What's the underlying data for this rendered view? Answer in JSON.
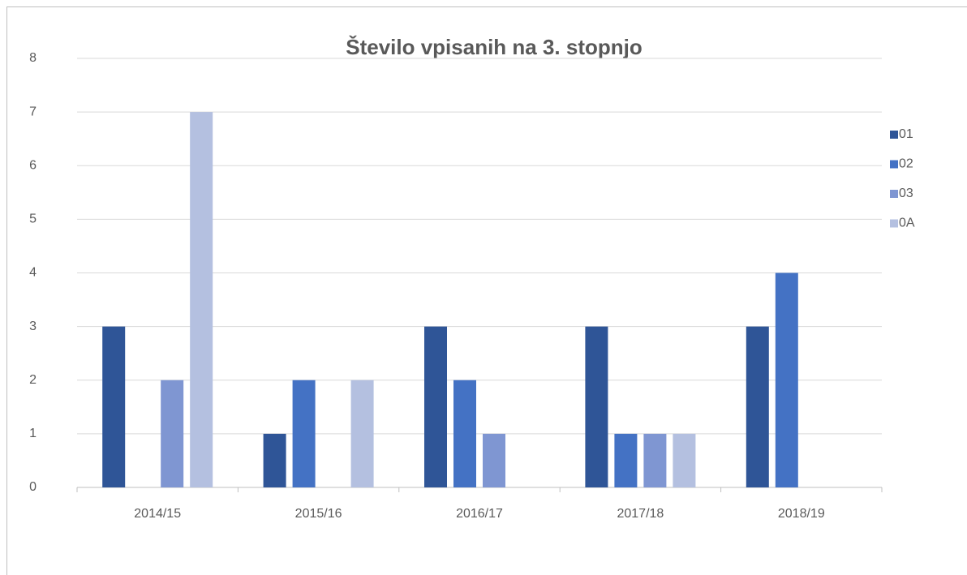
{
  "chart_data": {
    "type": "bar",
    "title": "Število vpisanih na 3. stopnjo",
    "categories": [
      "2014/15",
      "2015/16",
      "2016/17",
      "2017/18",
      "2018/19"
    ],
    "series": [
      {
        "name": "01",
        "color": "#2f5597",
        "values": [
          3,
          1,
          3,
          3,
          3
        ]
      },
      {
        "name": "02",
        "color": "#4472c4",
        "values": [
          0,
          2,
          2,
          1,
          4
        ]
      },
      {
        "name": "03",
        "color": "#7f96d2",
        "values": [
          2,
          0,
          1,
          1,
          0
        ]
      },
      {
        "name": "0A",
        "color": "#b4c0e0",
        "values": [
          7,
          2,
          0,
          1,
          0
        ]
      }
    ],
    "ylim": [
      0,
      8
    ],
    "yticks": [
      0,
      1,
      2,
      3,
      4,
      5,
      6,
      7,
      8
    ],
    "grid": true,
    "legend": "right"
  }
}
